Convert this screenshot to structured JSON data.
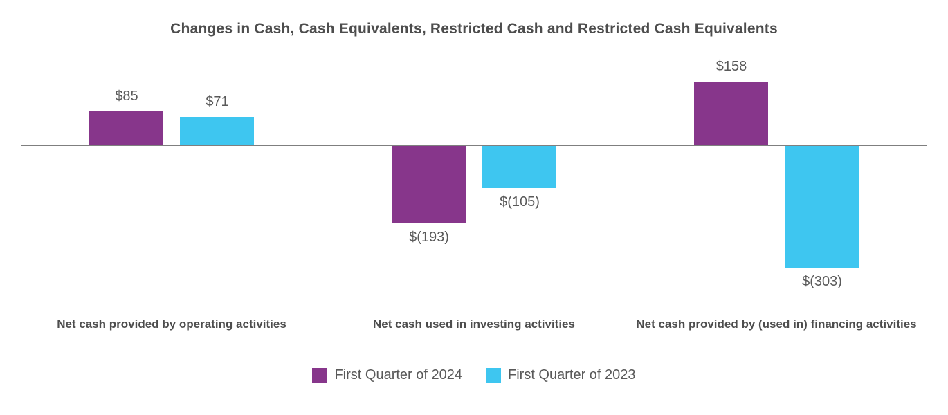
{
  "chart_data": {
    "type": "bar",
    "title": "Changes in Cash, Cash Equivalents, Restricted Cash and Restricted Cash Equivalents",
    "categories": [
      "Net cash provided by operating activities",
      "Net cash used in investing activities",
      "Net cash provided by (used in) financing activities"
    ],
    "series": [
      {
        "name": "First Quarter of 2024",
        "color": "#87368B",
        "values": [
          85,
          -193,
          158
        ],
        "labels": [
          "$85",
          "$(193)",
          "$158"
        ]
      },
      {
        "name": "First Quarter of 2023",
        "color": "#3EC6F0",
        "values": [
          71,
          -105,
          -303
        ],
        "labels": [
          "$71",
          "$(105)",
          "$(303)"
        ]
      }
    ],
    "xlabel": "",
    "ylabel": "",
    "ylim": [
      -330,
      190
    ],
    "grid": false,
    "legend_position": "bottom",
    "axis_color": "#7f7f7f",
    "label_color": "#595959",
    "title_color": "#4d4d4d"
  }
}
